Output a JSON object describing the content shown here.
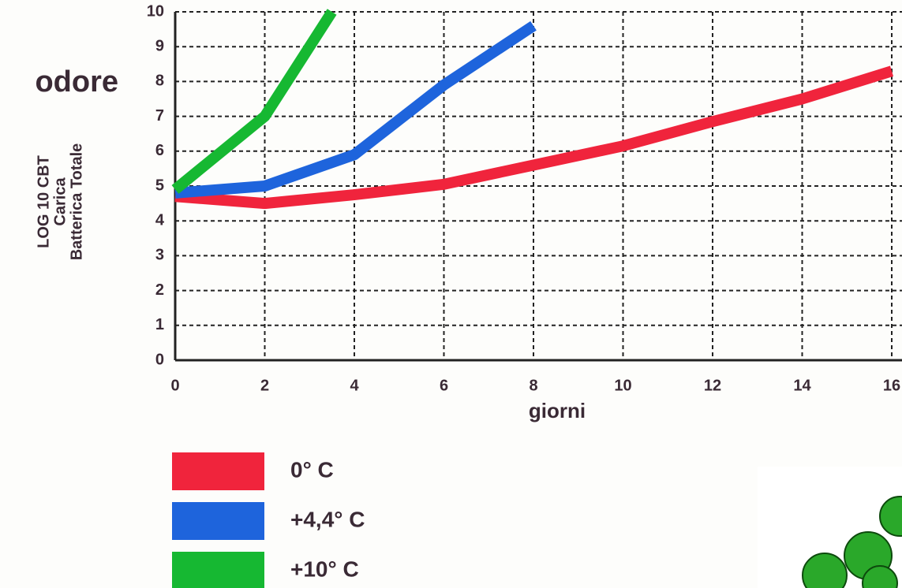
{
  "chart_data": {
    "type": "line",
    "y_label_lines": [
      "LOG 10 CBT",
      "Carica",
      "Batterica Totale"
    ],
    "annotation": "odore",
    "x_label": "giorni",
    "xlim": [
      0,
      16
    ],
    "xticks": [
      0,
      2,
      4,
      6,
      8,
      10,
      12,
      14,
      16
    ],
    "ylim": [
      0,
      10
    ],
    "yticks": [
      0,
      1,
      2,
      3,
      4,
      5,
      6,
      7,
      8,
      9,
      10
    ],
    "grid": true,
    "legend": "bottom",
    "series": [
      {
        "name": "0° C",
        "color": "#f0243c",
        "x": [
          0,
          2,
          4,
          6,
          8,
          10,
          12,
          14,
          16
        ],
        "values": [
          4.7,
          4.5,
          4.75,
          5.05,
          5.6,
          6.15,
          6.85,
          7.5,
          8.3
        ]
      },
      {
        "name": "+4,4° C",
        "color": "#1e64dc",
        "x": [
          0,
          2,
          4,
          6,
          8
        ],
        "values": [
          4.8,
          5.0,
          5.9,
          7.9,
          9.6
        ]
      },
      {
        "name": "+10° C",
        "color": "#16b832",
        "x": [
          0,
          2,
          3.5
        ],
        "values": [
          4.9,
          7.0,
          10
        ]
      }
    ]
  }
}
